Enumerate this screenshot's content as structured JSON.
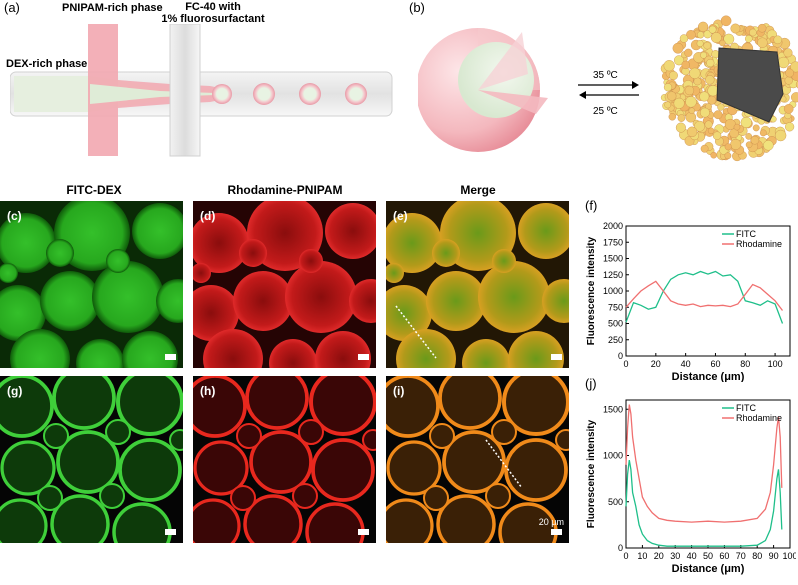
{
  "panels": {
    "a": {
      "label": "(a)",
      "dex_label": "DEX-rich phase",
      "pnipam_label": "PNIPAM-rich phase",
      "fc40_line1": "FC-40 with",
      "fc40_line2": "1% fluorosurfactant"
    },
    "b": {
      "label": "(b)",
      "heat_label": "35 ºC",
      "cool_label": "25 ºC"
    },
    "columns": {
      "fitc": "FITC-DEX",
      "rhod": "Rhodamine-PNIPAM",
      "merge": "Merge"
    },
    "tiles": {
      "c": "(c)",
      "d": "(d)",
      "e": "(e)",
      "g": "(g)",
      "h": "(h)",
      "i": "(i)",
      "scale_text": "20 μm"
    },
    "f_label": "(f)",
    "j_label": "(j)"
  },
  "colors": {
    "fitc_line": "#1fbf8a",
    "rhod_line": "#f07070",
    "pink_channel": "#f2a7b0",
    "gray_channel": "#e4e4e4",
    "particle": "#f3b97a"
  },
  "chart_data": [
    {
      "type": "line",
      "panel": "f",
      "xlabel": "Distance (μm)",
      "ylabel": "Fluorescence intensity",
      "xlim": [
        0,
        110
      ],
      "ylim": [
        0,
        2000
      ],
      "xticks": [
        0,
        20,
        40,
        60,
        80,
        100
      ],
      "yticks": [
        0,
        250,
        500,
        750,
        1000,
        1250,
        1500,
        1750,
        2000
      ],
      "legend_position": "top-right",
      "series": [
        {
          "name": "FITC",
          "color": "#1fbf8a",
          "x": [
            0,
            5,
            10,
            15,
            20,
            25,
            30,
            35,
            40,
            45,
            50,
            55,
            60,
            65,
            70,
            75,
            80,
            85,
            90,
            95,
            100,
            105
          ],
          "y": [
            520,
            820,
            780,
            720,
            750,
            1000,
            1180,
            1250,
            1280,
            1250,
            1300,
            1260,
            1300,
            1230,
            1250,
            1150,
            850,
            820,
            780,
            850,
            800,
            500
          ]
        },
        {
          "name": "Rhodamine",
          "color": "#f07070",
          "x": [
            0,
            5,
            10,
            15,
            20,
            25,
            30,
            35,
            40,
            45,
            50,
            55,
            60,
            65,
            70,
            75,
            80,
            85,
            90,
            95,
            100,
            105
          ],
          "y": [
            750,
            880,
            1000,
            1080,
            1150,
            1000,
            850,
            800,
            780,
            800,
            760,
            780,
            770,
            780,
            760,
            800,
            950,
            1100,
            1050,
            950,
            850,
            700
          ]
        }
      ]
    },
    {
      "type": "line",
      "panel": "j",
      "xlabel": "Distance (μm)",
      "ylabel": "Fluorescence intensity",
      "xlim": [
        0,
        100
      ],
      "ylim": [
        0,
        1600
      ],
      "xticks": [
        0,
        10,
        20,
        30,
        40,
        50,
        60,
        70,
        80,
        90,
        100
      ],
      "yticks": [
        0,
        500,
        1000,
        1500
      ],
      "legend_position": "top-right",
      "series": [
        {
          "name": "FITC",
          "color": "#1fbf8a",
          "x": [
            0,
            1,
            2,
            3,
            4,
            6,
            8,
            10,
            13,
            16,
            20,
            25,
            30,
            40,
            50,
            60,
            70,
            80,
            85,
            88,
            90,
            92,
            93,
            94,
            95
          ],
          "y": [
            450,
            800,
            950,
            850,
            600,
            450,
            250,
            150,
            80,
            50,
            30,
            20,
            20,
            20,
            20,
            20,
            20,
            30,
            80,
            200,
            400,
            750,
            850,
            600,
            200
          ]
        },
        {
          "name": "Rhodamine",
          "color": "#f07070",
          "x": [
            0,
            1,
            2,
            3,
            4,
            6,
            8,
            10,
            13,
            16,
            20,
            25,
            30,
            40,
            50,
            60,
            70,
            80,
            85,
            88,
            90,
            92,
            93,
            94,
            95
          ],
          "y": [
            900,
            1300,
            1550,
            1450,
            1200,
            950,
            750,
            550,
            450,
            380,
            320,
            300,
            290,
            280,
            290,
            280,
            290,
            320,
            420,
            600,
            900,
            1300,
            1420,
            1200,
            650
          ]
        }
      ]
    }
  ]
}
